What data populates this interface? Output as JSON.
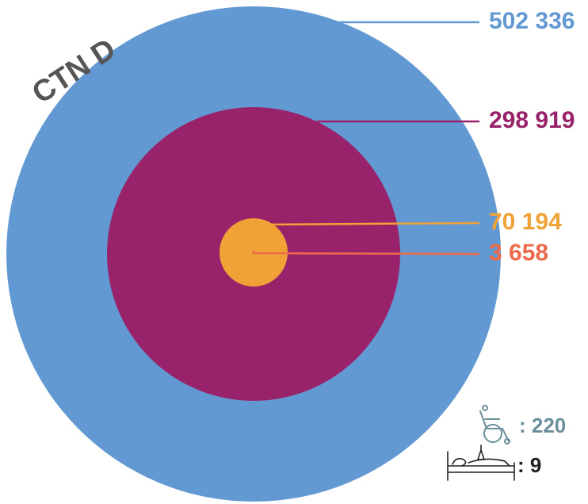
{
  "chart_data": {
    "type": "nested-circles",
    "title": "CTN D",
    "values": [
      {
        "label": "502 336",
        "value": 502336,
        "color": "#6399d2"
      },
      {
        "label": "298 919",
        "value": 298919,
        "color": "#98236a"
      },
      {
        "label": "70 194",
        "value": 70194,
        "color": "#f0a236"
      },
      {
        "label": "3 658",
        "value": 3658,
        "color": "#ec6b4a"
      }
    ],
    "legend": "right, with leader lines"
  },
  "stats": {
    "wheelchair": {
      "icon": "wheelchair-icon",
      "label": ": 220",
      "color": "#6b8f9a"
    },
    "bed": {
      "icon": "hospital-bed-icon",
      "label": ": 9",
      "color": "#222222"
    }
  }
}
